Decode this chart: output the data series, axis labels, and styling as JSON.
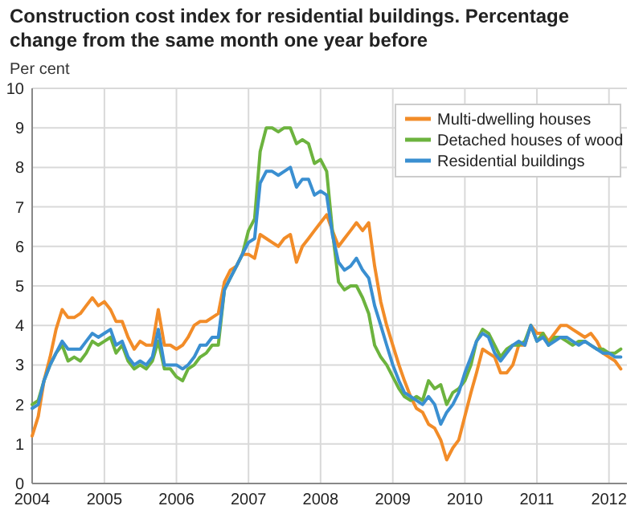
{
  "chart_data": {
    "type": "line",
    "title": "Construction cost index for residential buildings. Percentage change from the same month one year before",
    "ylabel": "Per cent",
    "x": [
      "2004-01",
      "2004-02",
      "2004-03",
      "2004-04",
      "2004-05",
      "2004-06",
      "2004-07",
      "2004-08",
      "2004-09",
      "2004-10",
      "2004-11",
      "2004-12",
      "2005-01",
      "2005-02",
      "2005-03",
      "2005-04",
      "2005-05",
      "2005-06",
      "2005-07",
      "2005-08",
      "2005-09",
      "2005-10",
      "2005-11",
      "2005-12",
      "2006-01",
      "2006-02",
      "2006-03",
      "2006-04",
      "2006-05",
      "2006-06",
      "2006-07",
      "2006-08",
      "2006-09",
      "2006-10",
      "2006-11",
      "2006-12",
      "2007-01",
      "2007-02",
      "2007-03",
      "2007-04",
      "2007-05",
      "2007-06",
      "2007-07",
      "2007-08",
      "2007-09",
      "2007-10",
      "2007-11",
      "2007-12",
      "2008-01",
      "2008-02",
      "2008-03",
      "2008-04",
      "2008-05",
      "2008-06",
      "2008-07",
      "2008-08",
      "2008-09",
      "2008-10",
      "2008-11",
      "2008-12",
      "2009-01",
      "2009-02",
      "2009-03",
      "2009-04",
      "2009-05",
      "2009-06",
      "2009-07",
      "2009-08",
      "2009-09",
      "2009-10",
      "2009-11",
      "2009-12",
      "2010-01",
      "2010-02",
      "2010-03",
      "2010-04",
      "2010-05",
      "2010-06",
      "2010-07",
      "2010-08",
      "2010-09",
      "2010-10",
      "2010-11",
      "2010-12",
      "2011-01",
      "2011-02",
      "2011-03",
      "2011-04",
      "2011-05",
      "2011-06",
      "2011-07",
      "2011-08",
      "2011-09",
      "2011-10",
      "2011-11",
      "2011-12",
      "2012-01",
      "2012-02",
      "2012-03"
    ],
    "series": [
      {
        "name": "Multi-dwelling houses",
        "color": "#f28c28",
        "values": [
          1.2,
          1.7,
          2.6,
          3.2,
          3.9,
          4.4,
          4.2,
          4.2,
          4.3,
          4.5,
          4.7,
          4.5,
          4.6,
          4.4,
          4.1,
          4.1,
          3.7,
          3.4,
          3.6,
          3.5,
          3.5,
          4.4,
          3.5,
          3.5,
          3.4,
          3.5,
          3.7,
          4.0,
          4.1,
          4.1,
          4.2,
          4.3,
          5.1,
          5.4,
          5.5,
          5.8,
          5.8,
          5.7,
          6.3,
          6.2,
          6.1,
          6.0,
          6.2,
          6.3,
          5.6,
          6.0,
          6.2,
          6.4,
          6.6,
          6.8,
          6.4,
          6.0,
          6.2,
          6.4,
          6.6,
          6.4,
          6.6,
          5.5,
          4.6,
          4.0,
          3.5,
          3.0,
          2.6,
          2.2,
          1.9,
          1.8,
          1.5,
          1.4,
          1.1,
          0.6,
          0.9,
          1.1,
          1.7,
          2.3,
          2.8,
          3.4,
          3.3,
          3.2,
          2.8,
          2.8,
          3.0,
          3.5,
          3.5,
          4.0,
          3.8,
          3.8,
          3.6,
          3.8,
          4.0,
          4.0,
          3.9,
          3.8,
          3.7,
          3.8,
          3.6,
          3.3,
          3.2,
          3.1,
          2.9
        ]
      },
      {
        "name": "Detached houses of wood",
        "color": "#6cb33e",
        "values": [
          2.0,
          2.1,
          2.6,
          3.0,
          3.3,
          3.5,
          3.1,
          3.2,
          3.1,
          3.3,
          3.6,
          3.5,
          3.6,
          3.7,
          3.3,
          3.5,
          3.1,
          2.9,
          3.0,
          2.9,
          3.1,
          3.6,
          2.9,
          2.9,
          2.7,
          2.6,
          2.9,
          3.0,
          3.2,
          3.3,
          3.5,
          3.5,
          4.9,
          5.2,
          5.5,
          5.8,
          6.4,
          6.7,
          8.4,
          9.0,
          9.0,
          8.9,
          9.0,
          9.0,
          8.6,
          8.7,
          8.6,
          8.1,
          8.2,
          7.9,
          6.4,
          5.1,
          4.9,
          5.0,
          5.0,
          4.7,
          4.3,
          3.5,
          3.2,
          3.0,
          2.7,
          2.4,
          2.2,
          2.1,
          2.2,
          2.1,
          2.6,
          2.4,
          2.5,
          2.0,
          2.3,
          2.4,
          2.6,
          3.0,
          3.6,
          3.9,
          3.8,
          3.5,
          3.2,
          3.4,
          3.5,
          3.5,
          3.6,
          4.0,
          3.6,
          3.8,
          3.5,
          3.7,
          3.7,
          3.6,
          3.5,
          3.6,
          3.6,
          3.5,
          3.4,
          3.4,
          3.3,
          3.3,
          3.4
        ]
      },
      {
        "name": "Residential buildings",
        "color": "#3a8fd1",
        "values": [
          1.9,
          2.0,
          2.6,
          3.0,
          3.3,
          3.6,
          3.4,
          3.4,
          3.4,
          3.6,
          3.8,
          3.7,
          3.8,
          3.9,
          3.5,
          3.6,
          3.2,
          3.0,
          3.1,
          3.0,
          3.2,
          3.9,
          3.0,
          3.0,
          3.0,
          2.9,
          3.0,
          3.2,
          3.5,
          3.5,
          3.7,
          3.7,
          4.9,
          5.2,
          5.5,
          5.8,
          6.1,
          6.2,
          7.6,
          7.9,
          7.9,
          7.8,
          7.9,
          8.0,
          7.5,
          7.7,
          7.7,
          7.3,
          7.4,
          7.3,
          6.3,
          5.6,
          5.4,
          5.5,
          5.7,
          5.4,
          5.2,
          4.5,
          4.0,
          3.5,
          3.0,
          2.6,
          2.3,
          2.2,
          2.1,
          2.0,
          2.2,
          2.0,
          1.5,
          1.8,
          2.0,
          2.3,
          2.8,
          3.2,
          3.6,
          3.8,
          3.7,
          3.3,
          3.1,
          3.3,
          3.5,
          3.6,
          3.5,
          4.0,
          3.6,
          3.7,
          3.5,
          3.6,
          3.7,
          3.7,
          3.6,
          3.5,
          3.6,
          3.5,
          3.4,
          3.3,
          3.3,
          3.2,
          3.2
        ]
      }
    ],
    "xlim": [
      "2004-01",
      "2012-04"
    ],
    "xticks": [
      "2004",
      "2005",
      "2006",
      "2007",
      "2008",
      "2009",
      "2010",
      "2011",
      "2012"
    ],
    "ylim": [
      0,
      10
    ],
    "yticks": [
      0,
      1,
      2,
      3,
      4,
      5,
      6,
      7,
      8,
      9,
      10
    ],
    "grid": true,
    "legend": "top right"
  }
}
